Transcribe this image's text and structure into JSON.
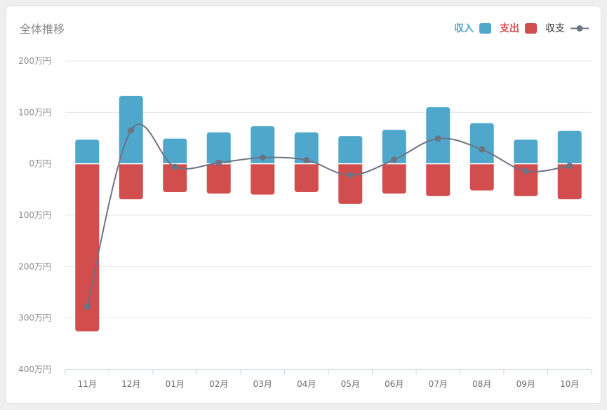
{
  "chart_data": {
    "type": "bar",
    "title": "全体推移",
    "categories": [
      "11月",
      "12月",
      "01月",
      "02月",
      "03月",
      "04月",
      "05月",
      "06月",
      "07月",
      "08月",
      "09月",
      "10月"
    ],
    "series": [
      {
        "name": "収入",
        "type": "bar",
        "color": "#4fa8cc",
        "values": [
          47,
          132,
          49,
          61,
          73,
          61,
          54,
          66,
          110,
          79,
          47,
          64
        ]
      },
      {
        "name": "支出",
        "type": "bar",
        "color": "#d24e4e",
        "values": [
          -326,
          -69,
          -55,
          -58,
          -60,
          -55,
          -78,
          -58,
          -63,
          -52,
          -63,
          -69
        ]
      },
      {
        "name": "収支",
        "type": "line",
        "color": "#6b7385",
        "values": [
          -278,
          65,
          -6,
          2,
          12,
          7,
          -22,
          8,
          49,
          28,
          -14,
          -4
        ]
      }
    ],
    "ylim": [
      -400,
      200
    ],
    "yticks": [
      200,
      100,
      0,
      -100,
      -200,
      -300,
      -400
    ],
    "ytick_labels": [
      "200万円",
      "100万円",
      "0万円",
      "100万円",
      "200万円",
      "300万円",
      "400万円"
    ],
    "legend_position": "top-right",
    "grid": true
  }
}
